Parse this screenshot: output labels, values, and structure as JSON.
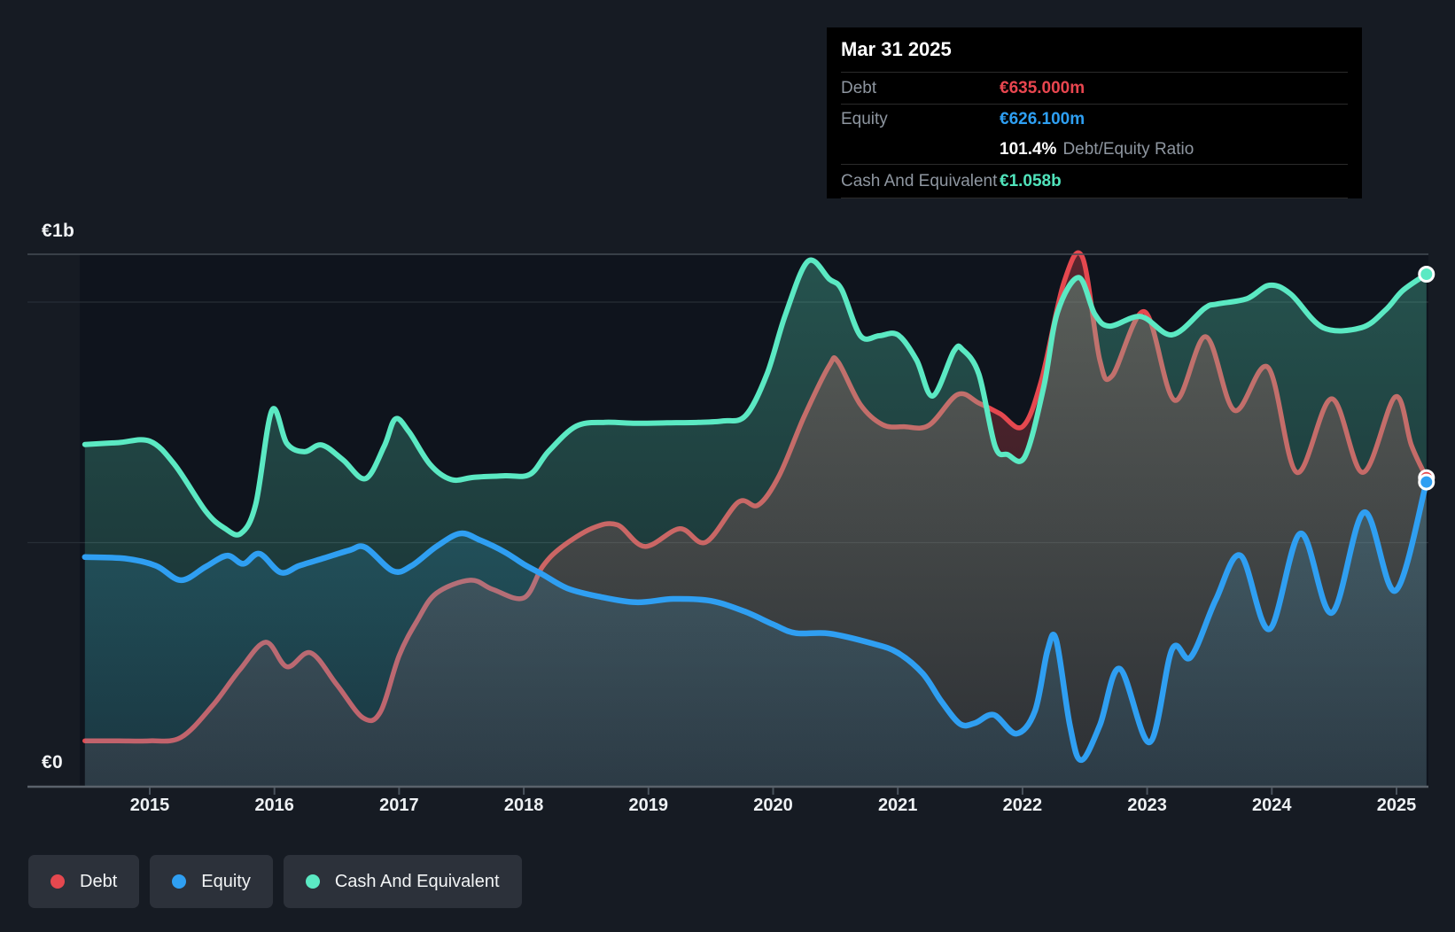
{
  "y_axis_label_top": "€1b",
  "y_axis_label_bottom": "€0",
  "tooltip": {
    "date": "Mar 31 2025",
    "debt_label": "Debt",
    "debt_value": "€635.000m",
    "debt_color": "#e8464f",
    "equity_label": "Equity",
    "equity_value": "€626.100m",
    "equity_color": "#2e9ff2",
    "ratio_value": "101.4%",
    "ratio_label": "Debt/Equity Ratio",
    "cash_label": "Cash And Equivalent",
    "cash_value": "€1.058b",
    "cash_color": "#50e3bb"
  },
  "legend": {
    "items": [
      {
        "label": "Debt",
        "color": "#e5484f"
      },
      {
        "label": "Equity",
        "color": "#2f9ff2"
      },
      {
        "label": "Cash And Equivalent",
        "color": "#5be9c3"
      }
    ]
  },
  "chart_data": {
    "type": "area",
    "unit": "EUR millions",
    "x_axis": {
      "ticks": [
        2015,
        2016,
        2017,
        2018,
        2019,
        2020,
        2021,
        2022,
        2023,
        2024,
        2025
      ],
      "range": [
        2014.48,
        2025.3
      ]
    },
    "y_axis": {
      "gridline_values_m": [
        0,
        500,
        1000
      ],
      "labels": [
        "€0",
        "€1b"
      ],
      "range_m": [
        0,
        1100
      ]
    },
    "legend_position": "bottom-left",
    "series": [
      {
        "name": "Debt",
        "color": "#e5484f",
        "fill_top": "rgba(195,62,70,0.42)",
        "fill_bottom": "rgba(160,60,70,0.16)",
        "points": [
          [
            2014.48,
            88
          ],
          [
            2014.75,
            88
          ],
          [
            2015.0,
            88
          ],
          [
            2015.25,
            95
          ],
          [
            2015.5,
            160
          ],
          [
            2015.72,
            235
          ],
          [
            2015.93,
            293
          ],
          [
            2016.1,
            242
          ],
          [
            2016.29,
            271
          ],
          [
            2016.5,
            205
          ],
          [
            2016.71,
            136
          ],
          [
            2016.85,
            148
          ],
          [
            2017.0,
            265
          ],
          [
            2017.15,
            340
          ],
          [
            2017.3,
            395
          ],
          [
            2017.57,
            422
          ],
          [
            2017.75,
            403
          ],
          [
            2018.0,
            385
          ],
          [
            2018.15,
            450
          ],
          [
            2018.3,
            490
          ],
          [
            2018.55,
            530
          ],
          [
            2018.75,
            537
          ],
          [
            2018.97,
            492
          ],
          [
            2019.25,
            529
          ],
          [
            2019.46,
            501
          ],
          [
            2019.72,
            584
          ],
          [
            2019.88,
            578
          ],
          [
            2020.05,
            640
          ],
          [
            2020.25,
            763
          ],
          [
            2020.45,
            868
          ],
          [
            2020.52,
            876
          ],
          [
            2020.7,
            787
          ],
          [
            2020.88,
            745
          ],
          [
            2021.05,
            741
          ],
          [
            2021.25,
            744
          ],
          [
            2021.48,
            808
          ],
          [
            2021.65,
            790
          ],
          [
            2021.82,
            768
          ],
          [
            2022.0,
            741
          ],
          [
            2022.15,
            836
          ],
          [
            2022.33,
            1039
          ],
          [
            2022.48,
            1094
          ],
          [
            2022.62,
            880
          ],
          [
            2022.72,
            847
          ],
          [
            2022.98,
            980
          ],
          [
            2023.22,
            796
          ],
          [
            2023.47,
            928
          ],
          [
            2023.7,
            775
          ],
          [
            2023.97,
            864
          ],
          [
            2024.2,
            646
          ],
          [
            2024.48,
            799
          ],
          [
            2024.73,
            646
          ],
          [
            2024.99,
            803
          ],
          [
            2025.12,
            702
          ],
          [
            2025.24,
            635
          ]
        ]
      },
      {
        "name": "Equity",
        "color": "#2f9ff2",
        "fill_top": "rgba(45,155,230,0.26)",
        "fill_bottom": "rgba(45,155,230,0.10)",
        "points": [
          [
            2014.48,
            470
          ],
          [
            2014.8,
            467
          ],
          [
            2015.05,
            452
          ],
          [
            2015.25,
            422
          ],
          [
            2015.45,
            450
          ],
          [
            2015.62,
            473
          ],
          [
            2015.75,
            456
          ],
          [
            2015.88,
            477
          ],
          [
            2016.05,
            438
          ],
          [
            2016.2,
            452
          ],
          [
            2016.4,
            468
          ],
          [
            2016.6,
            484
          ],
          [
            2016.73,
            490
          ],
          [
            2016.95,
            441
          ],
          [
            2017.1,
            452
          ],
          [
            2017.3,
            492
          ],
          [
            2017.49,
            519
          ],
          [
            2017.65,
            505
          ],
          [
            2017.85,
            480
          ],
          [
            2018.0,
            455
          ],
          [
            2018.15,
            434
          ],
          [
            2018.35,
            405
          ],
          [
            2018.6,
            388
          ],
          [
            2018.9,
            376
          ],
          [
            2019.2,
            383
          ],
          [
            2019.5,
            379
          ],
          [
            2019.77,
            357
          ],
          [
            2020.0,
            330
          ],
          [
            2020.18,
            312
          ],
          [
            2020.45,
            311
          ],
          [
            2020.8,
            290
          ],
          [
            2021.0,
            271
          ],
          [
            2021.2,
            228
          ],
          [
            2021.35,
            170
          ],
          [
            2021.5,
            123
          ],
          [
            2021.62,
            125
          ],
          [
            2021.77,
            142
          ],
          [
            2021.95,
            103
          ],
          [
            2022.1,
            150
          ],
          [
            2022.2,
            275
          ],
          [
            2022.27,
            298
          ],
          [
            2022.38,
            120
          ],
          [
            2022.47,
            48
          ],
          [
            2022.62,
            120
          ],
          [
            2022.78,
            238
          ],
          [
            2023.02,
            85
          ],
          [
            2023.2,
            278
          ],
          [
            2023.35,
            262
          ],
          [
            2023.55,
            381
          ],
          [
            2023.75,
            473
          ],
          [
            2023.98,
            320
          ],
          [
            2024.23,
            519
          ],
          [
            2024.48,
            354
          ],
          [
            2024.74,
            563
          ],
          [
            2024.99,
            400
          ],
          [
            2025.24,
            626
          ]
        ]
      },
      {
        "name": "Cash And Equivalent",
        "color": "#5be9c3",
        "fill_top": "rgba(90,228,192,0.30)",
        "fill_bottom": "rgba(90,228,192,0.10)",
        "points": [
          [
            2014.48,
            704
          ],
          [
            2014.75,
            708
          ],
          [
            2015.0,
            711
          ],
          [
            2015.2,
            662
          ],
          [
            2015.45,
            565
          ],
          [
            2015.6,
            530
          ],
          [
            2015.73,
            519
          ],
          [
            2015.85,
            580
          ],
          [
            2015.98,
            775
          ],
          [
            2016.1,
            706
          ],
          [
            2016.24,
            689
          ],
          [
            2016.38,
            703
          ],
          [
            2016.55,
            672
          ],
          [
            2016.73,
            633
          ],
          [
            2016.88,
            700
          ],
          [
            2016.97,
            757
          ],
          [
            2017.08,
            730
          ],
          [
            2017.25,
            662
          ],
          [
            2017.42,
            631
          ],
          [
            2017.6,
            636
          ],
          [
            2017.85,
            639
          ],
          [
            2018.05,
            642
          ],
          [
            2018.2,
            690
          ],
          [
            2018.42,
            742
          ],
          [
            2018.65,
            750
          ],
          [
            2018.9,
            748
          ],
          [
            2019.15,
            749
          ],
          [
            2019.4,
            750
          ],
          [
            2019.6,
            753
          ],
          [
            2019.78,
            764
          ],
          [
            2019.95,
            850
          ],
          [
            2020.1,
            975
          ],
          [
            2020.28,
            1085
          ],
          [
            2020.45,
            1048
          ],
          [
            2020.55,
            1026
          ],
          [
            2020.7,
            930
          ],
          [
            2020.85,
            930
          ],
          [
            2021.0,
            932
          ],
          [
            2021.15,
            880
          ],
          [
            2021.28,
            805
          ],
          [
            2021.45,
            898
          ],
          [
            2021.52,
            901
          ],
          [
            2021.65,
            850
          ],
          [
            2021.78,
            701
          ],
          [
            2021.88,
            683
          ],
          [
            2022.02,
            679
          ],
          [
            2022.17,
            823
          ],
          [
            2022.28,
            978
          ],
          [
            2022.45,
            1051
          ],
          [
            2022.58,
            975
          ],
          [
            2022.7,
            950
          ],
          [
            2022.95,
            970
          ],
          [
            2023.2,
            932
          ],
          [
            2023.46,
            987
          ],
          [
            2023.56,
            996
          ],
          [
            2023.8,
            1007
          ],
          [
            2023.98,
            1035
          ],
          [
            2024.15,
            1017
          ],
          [
            2024.41,
            947
          ],
          [
            2024.72,
            947
          ],
          [
            2024.91,
            983
          ],
          [
            2025.05,
            1024
          ],
          [
            2025.24,
            1058
          ]
        ]
      }
    ]
  }
}
